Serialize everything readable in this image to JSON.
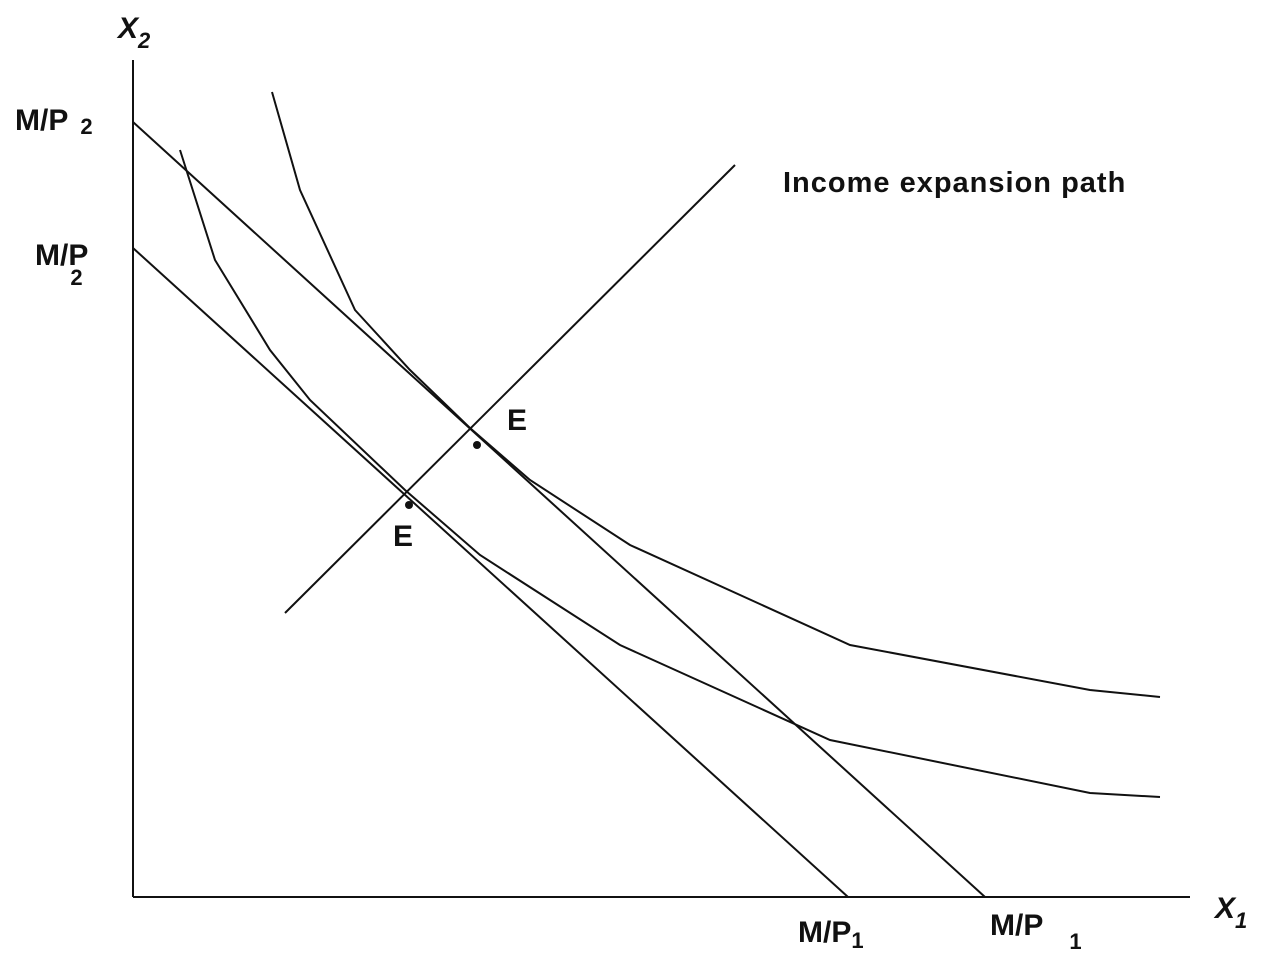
{
  "axes": {
    "y": {
      "main": "X",
      "sub": "2"
    },
    "x": {
      "main": "X",
      "sub": "1"
    }
  },
  "intercepts": {
    "y_outer": {
      "main": "M/P",
      "sub": "2"
    },
    "y_inner": {
      "main": "M/P",
      "sub": "2"
    },
    "x_inner": {
      "main": "M/P",
      "sub": "1"
    },
    "x_outer": {
      "main": "M/P",
      "sub": "1"
    }
  },
  "path_label": "Income expansion path",
  "points": [
    "E",
    "E"
  ]
}
